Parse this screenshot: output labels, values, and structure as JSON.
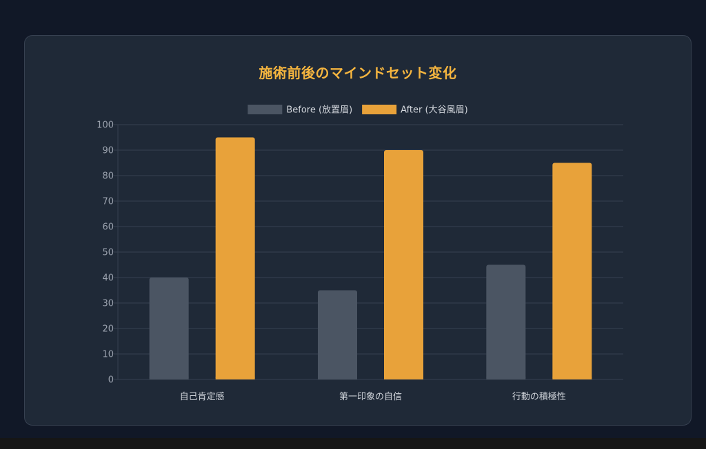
{
  "colors": {
    "before": "#4b5563",
    "after": "#e8a23a",
    "title": "#f5b53f",
    "grid": "#374151"
  },
  "chart_data": {
    "type": "bar",
    "title": "施術前後のマインドセット変化",
    "categories": [
      "自己肯定感",
      "第一印象の自信",
      "行動の積極性"
    ],
    "series": [
      {
        "name": "Before (放置眉)",
        "values": [
          40,
          35,
          45
        ]
      },
      {
        "name": "After (大谷風眉)",
        "values": [
          95,
          90,
          85
        ]
      }
    ],
    "xlabel": "",
    "ylabel": "",
    "ylim": [
      0,
      100
    ],
    "yticks": [
      0,
      10,
      20,
      30,
      40,
      50,
      60,
      70,
      80,
      90,
      100
    ],
    "grid": true,
    "legend_position": "top-center"
  }
}
